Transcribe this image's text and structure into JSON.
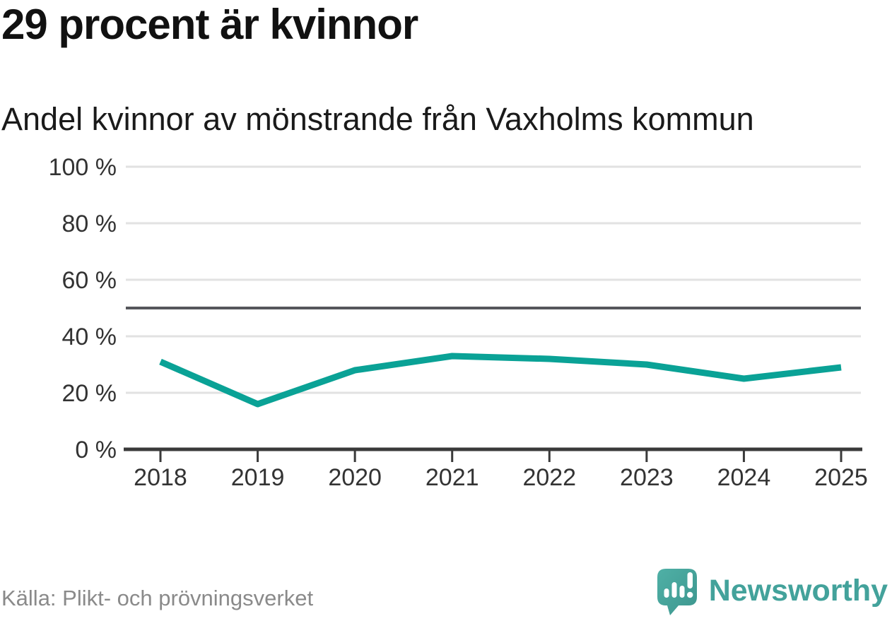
{
  "header": {
    "title": "29 procent är kvinnor",
    "subtitle": "Andel kvinnor av mönstrande från Vaxholms kommun"
  },
  "chart_data": {
    "type": "line",
    "title": "29 procent är kvinnor",
    "subtitle": "Andel kvinnor av mönstrande från Vaxholms kommun",
    "x": [
      2018,
      2019,
      2020,
      2021,
      2022,
      2023,
      2024,
      2025
    ],
    "series": [
      {
        "name": "Andel kvinnor av mönstrande",
        "values": [
          31,
          16,
          28,
          33,
          32,
          30,
          25,
          29
        ]
      }
    ],
    "unit": "%",
    "ylim": [
      0,
      100
    ],
    "yticks": [
      0,
      20,
      40,
      60,
      80,
      100
    ],
    "ytick_suffix": " %",
    "reference_line": 50,
    "grid": true,
    "legend": "none",
    "line_color": "#0aa296",
    "reference_line_color": "#55565b",
    "axis_color": "#3a3a3a",
    "grid_color": "#e2e2e2",
    "tick_label_color": "#333333"
  },
  "footer": {
    "source": "Källa: Plikt- och prövningsverket",
    "logo_text": "Newsworthy"
  },
  "colors": {
    "accent": "#0aa296",
    "logo_teal": "#43a29b",
    "logo_bubble_light": "#4fb0a6",
    "logo_bubble_dark": "#3d968e"
  }
}
